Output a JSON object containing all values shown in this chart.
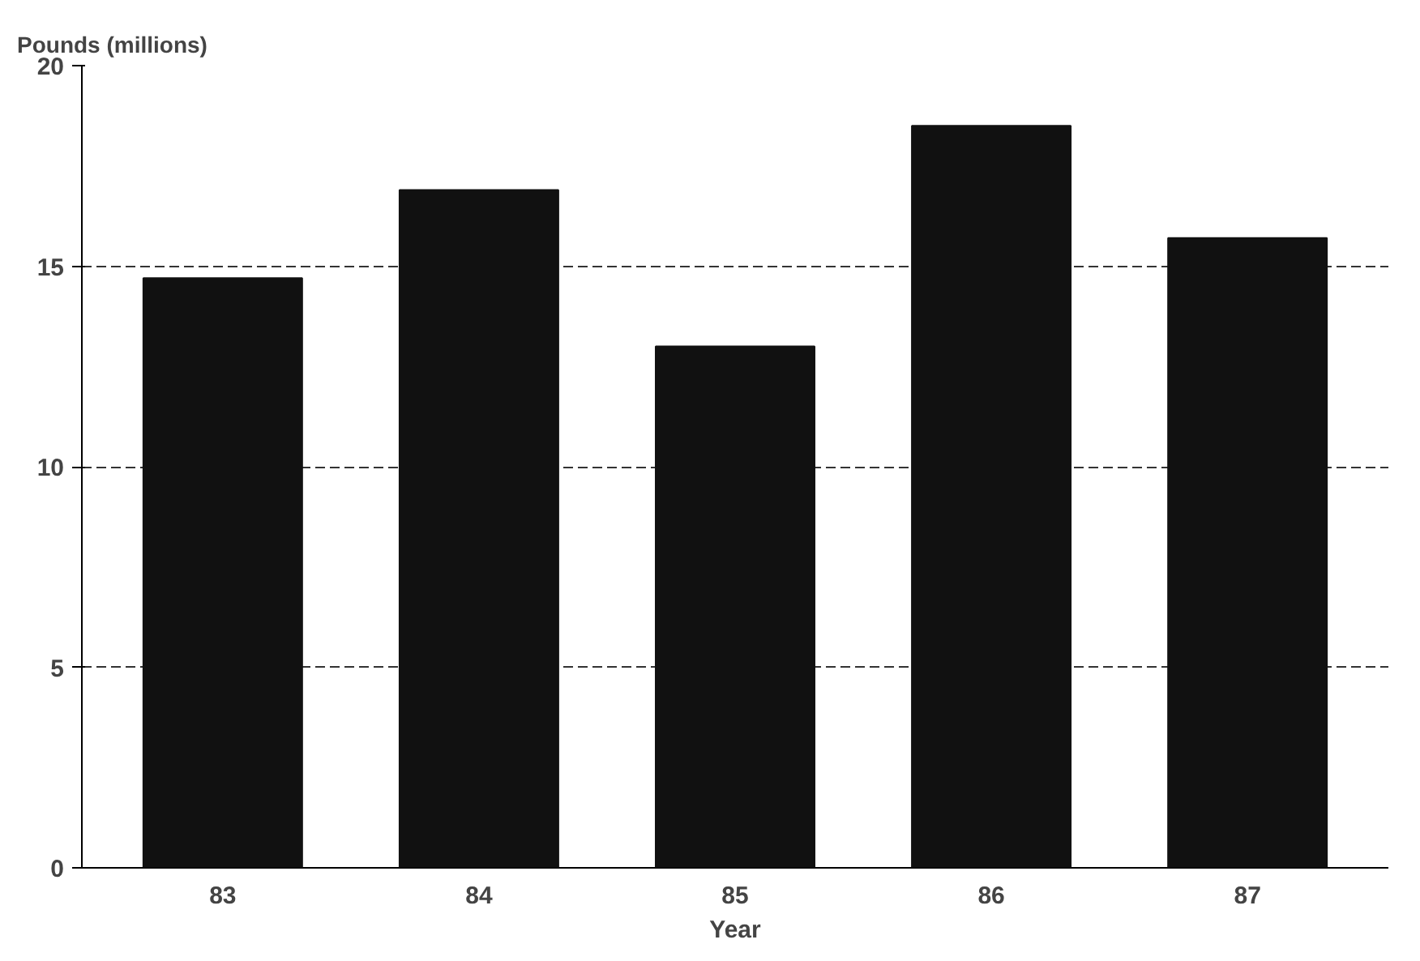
{
  "chart_data": {
    "type": "bar",
    "ylabel": "Pounds (millions)",
    "xlabel": "Year",
    "categories": [
      "83",
      "84",
      "85",
      "86",
      "87"
    ],
    "values": [
      14.7,
      16.9,
      13.0,
      18.5,
      15.7
    ],
    "color": "#111111",
    "ylim": [
      0,
      20
    ],
    "yticks": [
      0,
      5,
      10,
      15,
      20
    ],
    "grid": "y"
  }
}
